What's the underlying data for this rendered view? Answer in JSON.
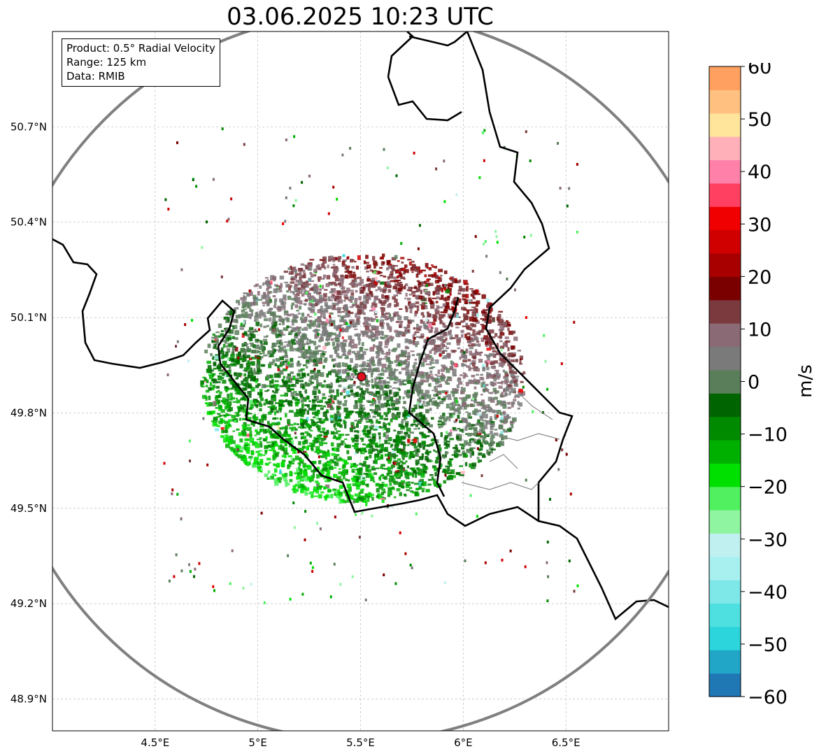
{
  "title": "03.06.2025 10:23 UTC",
  "info_box": {
    "product": "Product: 0.5° Radial Velocity",
    "range": "Range: 125 km",
    "data": "Data: RMIB"
  },
  "map": {
    "lon_range": [
      4.0,
      7.0
    ],
    "lat_range": [
      48.8,
      51.0
    ],
    "x_ticks": [
      {
        "value": 4.5,
        "label": "4.5°E"
      },
      {
        "value": 5.0,
        "label": "5°E"
      },
      {
        "value": 5.5,
        "label": "5.5°E"
      },
      {
        "value": 6.0,
        "label": "6°E"
      },
      {
        "value": 6.5,
        "label": "6.5°E"
      }
    ],
    "y_ticks": [
      {
        "value": 50.7,
        "label": "50.7°N"
      },
      {
        "value": 50.4,
        "label": "50.4°N"
      },
      {
        "value": 50.1,
        "label": "50.1°N"
      },
      {
        "value": 49.8,
        "label": "49.8°N"
      },
      {
        "value": 49.5,
        "label": "49.5°N"
      },
      {
        "value": 49.2,
        "label": "49.2°N"
      },
      {
        "value": 48.9,
        "label": "48.9°N"
      }
    ],
    "radar_site": {
      "lon": 5.505,
      "lat": 49.914
    },
    "range_ring_color": "#808080",
    "border_color": "#000000",
    "gridline_color": "#b0b0b0"
  },
  "colorbar": {
    "label": "m/s",
    "min": -60,
    "max": 60,
    "ticks": [
      {
        "value": 60,
        "label": "60"
      },
      {
        "value": 50,
        "label": "50"
      },
      {
        "value": 40,
        "label": "40"
      },
      {
        "value": 30,
        "label": "30"
      },
      {
        "value": 20,
        "label": "20"
      },
      {
        "value": 10,
        "label": "10"
      },
      {
        "value": 0,
        "label": "0"
      },
      {
        "value": -10,
        "label": "−10"
      },
      {
        "value": -20,
        "label": "−20"
      },
      {
        "value": -30,
        "label": "−30"
      },
      {
        "value": -40,
        "label": "−40"
      },
      {
        "value": -50,
        "label": "−50"
      },
      {
        "value": -60,
        "label": "−60"
      }
    ],
    "stops": [
      "#1f77b4",
      "#22a6c8",
      "#2cd4dc",
      "#4ee0e0",
      "#7ee8e8",
      "#a8f0f0",
      "#c0f0f0",
      "#90f5a0",
      "#50f060",
      "#00e000",
      "#00b000",
      "#008a00",
      "#006400",
      "#5a7e5a",
      "#7a7a7a",
      "#8a6a74",
      "#7a3a3e",
      "#7a0000",
      "#a80000",
      "#d00000",
      "#f00000",
      "#ff4060",
      "#ff80a8",
      "#ffb0b8",
      "#ffe49c",
      "#ffc080",
      "#ffa060"
    ]
  }
}
